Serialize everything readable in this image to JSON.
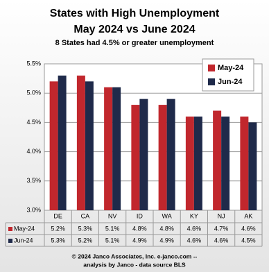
{
  "chart_data": {
    "type": "bar",
    "title": "States with High Unemployment",
    "subtitle": "May 2024 vs June 2024",
    "annotation": "8 States had 4.5% or greater unemployment",
    "categories": [
      "DE",
      "CA",
      "NV",
      "ID",
      "WA",
      "KY",
      "NJ",
      "AK"
    ],
    "series": [
      {
        "name": "May-24",
        "color": "#c1272d",
        "values": [
          5.2,
          5.3,
          5.1,
          4.8,
          4.8,
          4.6,
          4.7,
          4.6
        ],
        "value_labels": [
          "5.2%",
          "5.3%",
          "5.1%",
          "4.8%",
          "4.8%",
          "4.6%",
          "4.7%",
          "4.6%"
        ]
      },
      {
        "name": "Jun-24",
        "color": "#1f2a4a",
        "values": [
          5.3,
          5.2,
          5.1,
          4.9,
          4.9,
          4.6,
          4.6,
          4.5
        ],
        "value_labels": [
          "5.3%",
          "5.2%",
          "5.1%",
          "4.9%",
          "4.9%",
          "4.6%",
          "4.6%",
          "4.5%"
        ]
      }
    ],
    "ylim": [
      3.0,
      5.5
    ],
    "yticks": [
      {
        "value": 3.0,
        "label": "3.0%"
      },
      {
        "value": 3.5,
        "label": "3.5%"
      },
      {
        "value": 4.0,
        "label": "4.0%"
      },
      {
        "value": 4.5,
        "label": "4.5%"
      },
      {
        "value": 5.0,
        "label": "5.0%"
      },
      {
        "value": 5.5,
        "label": "5.5%"
      }
    ],
    "grid": true,
    "legend": "upper right",
    "footer": [
      "© 2024 Janco Associates, Inc. e-janco.com --",
      "analysis by Janco - data source BLS"
    ]
  }
}
